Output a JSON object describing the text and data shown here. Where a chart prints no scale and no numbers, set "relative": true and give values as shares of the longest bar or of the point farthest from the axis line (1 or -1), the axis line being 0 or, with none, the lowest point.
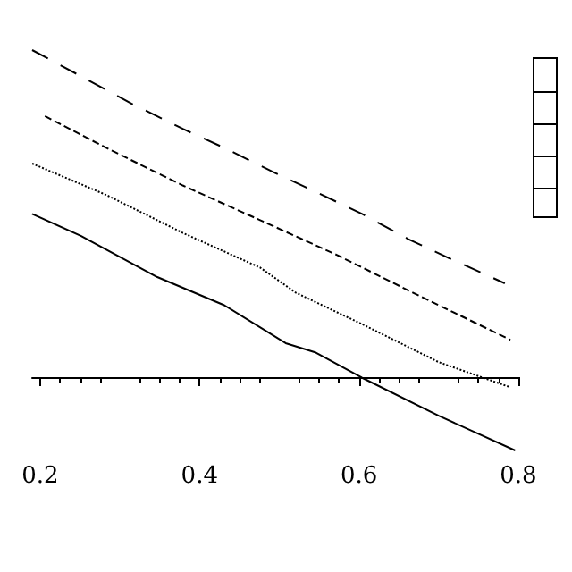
{
  "chart_data": {
    "type": "line",
    "relative": true,
    "xlim": [
      0.19,
      0.8
    ],
    "xticks": [
      0.2,
      0.4,
      0.6,
      0.8
    ],
    "grid": false,
    "marker": "none",
    "series": [
      {
        "color": "#000000",
        "line_style": "solid",
        "x": [
          0.19,
          0.251,
          0.347,
          0.431,
          0.508,
          0.546,
          0.604,
          0.7,
          0.796
        ],
        "values": [
          0.499,
          0.432,
          0.306,
          0.22,
          0.104,
          0.075,
          -0.002,
          -0.118,
          -0.224
        ]
      },
      {
        "color": "#000000",
        "line_style": "dotted",
        "x": [
          0.19,
          0.283,
          0.379,
          0.476,
          0.521,
          0.604,
          0.7,
          0.79
        ],
        "values": [
          0.653,
          0.557,
          0.441,
          0.335,
          0.258,
          0.162,
          0.046,
          -0.031
        ]
      },
      {
        "color": "#000000",
        "line_style": "dashed",
        "x": [
          0.206,
          0.283,
          0.379,
          0.476,
          0.572,
          0.668,
          0.79
        ],
        "values": [
          0.798,
          0.701,
          0.586,
          0.48,
          0.374,
          0.258,
          0.114
        ]
      },
      {
        "color": "#000000",
        "line_style": "dashed",
        "x": [
          0.19,
          0.271,
          0.315,
          0.379,
          0.431,
          0.495,
          0.546,
          0.604,
          0.662,
          0.713,
          0.783
        ],
        "values": [
          1,
          0.894,
          0.836,
          0.759,
          0.701,
          0.624,
          0.566,
          0.499,
          0.422,
          0.364,
          0.287
        ]
      }
    ]
  }
}
